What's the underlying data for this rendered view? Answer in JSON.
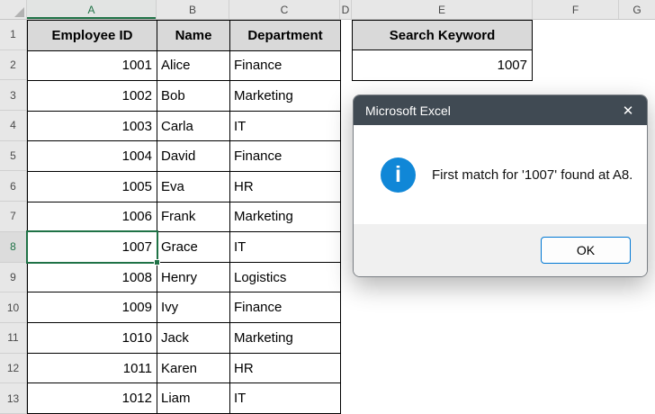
{
  "sheet": {
    "column_letters": [
      "A",
      "B",
      "C",
      "D",
      "E",
      "F",
      "G"
    ],
    "row_numbers": [
      "1",
      "2",
      "3",
      "4",
      "5",
      "6",
      "7",
      "8",
      "9",
      "10",
      "11",
      "12",
      "13"
    ],
    "selected_column": "A",
    "selected_row": "8",
    "active_cell": "A8"
  },
  "table": {
    "headers": [
      "Employee ID",
      "Name",
      "Department"
    ],
    "rows": [
      {
        "id": "1001",
        "name": "Alice",
        "dept": "Finance"
      },
      {
        "id": "1002",
        "name": "Bob",
        "dept": "Marketing"
      },
      {
        "id": "1003",
        "name": "Carla",
        "dept": "IT"
      },
      {
        "id": "1004",
        "name": "David",
        "dept": "Finance"
      },
      {
        "id": "1005",
        "name": "Eva",
        "dept": "HR"
      },
      {
        "id": "1006",
        "name": "Frank",
        "dept": "Marketing"
      },
      {
        "id": "1007",
        "name": "Grace",
        "dept": "IT"
      },
      {
        "id": "1008",
        "name": "Henry",
        "dept": "Logistics"
      },
      {
        "id": "1009",
        "name": "Ivy",
        "dept": "Finance"
      },
      {
        "id": "1010",
        "name": "Jack",
        "dept": "Marketing"
      },
      {
        "id": "1011",
        "name": "Karen",
        "dept": "HR"
      },
      {
        "id": "1012",
        "name": "Liam",
        "dept": "IT"
      }
    ]
  },
  "search": {
    "header": "Search Keyword",
    "value": "1007"
  },
  "dialog": {
    "title": "Microsoft Excel",
    "message": "First match for '1007' found at A8.",
    "ok_label": "OK",
    "close_icon": "✕",
    "info_icon": "i"
  },
  "colors": {
    "selection_green": "#1F7246",
    "table_header_fill": "#D9D9D9",
    "header_strip_fill": "#E7E7E7",
    "dialog_titlebar": "#404A53",
    "dialog_footer": "#F0F0F0",
    "ok_button_border": "#0078D4",
    "info_icon_blue": "#1087D7"
  }
}
